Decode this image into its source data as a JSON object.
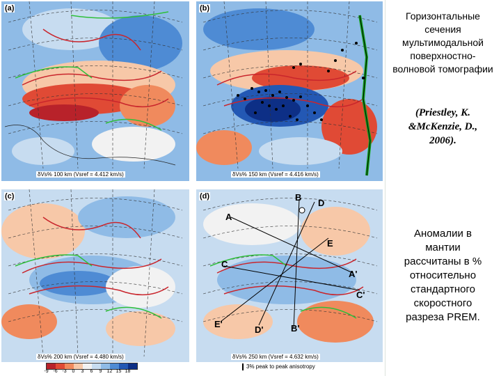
{
  "panels": [
    {
      "label": "(a)",
      "caption": "δVs% 100 km (Vsref = 4.412 km/s)"
    },
    {
      "label": "(b)",
      "caption": "δVs% 150 km (Vsref = 4.416 km/s)"
    },
    {
      "label": "(c)",
      "caption": "δVs% 200 km (Vsref = 4.480 km/s)"
    },
    {
      "label": "(d)",
      "caption": "δVs% 250 km (Vsref = 4.632 km/s)"
    }
  ],
  "sections": [
    "A",
    "A'",
    "B",
    "B'",
    "C",
    "C'",
    "D",
    "D'",
    "E",
    "E'"
  ],
  "colorbar": {
    "ticks": [
      "-9",
      "-6",
      "-3",
      "0",
      "3",
      "6",
      "9",
      "12",
      "15",
      "18"
    ],
    "colors": [
      "#b8222a",
      "#e04a35",
      "#f08a5d",
      "#f7c8a8",
      "#f2f2f2",
      "#c7dcf0",
      "#8fbbe6",
      "#4e8bd4",
      "#2358b4",
      "#0d2f86"
    ]
  },
  "anisotropy_note": "3% peak to peak anisotropy",
  "sidebar": {
    "title": "Горизонтальные сечения мультимодальной поверхностно-волновой томографии",
    "citation": "(Priestley, K. &McKenzie, D., 2006).",
    "note": "Аномалии в мантии рассчитаны в % относительно стандартного скоростного разреза PREM."
  }
}
